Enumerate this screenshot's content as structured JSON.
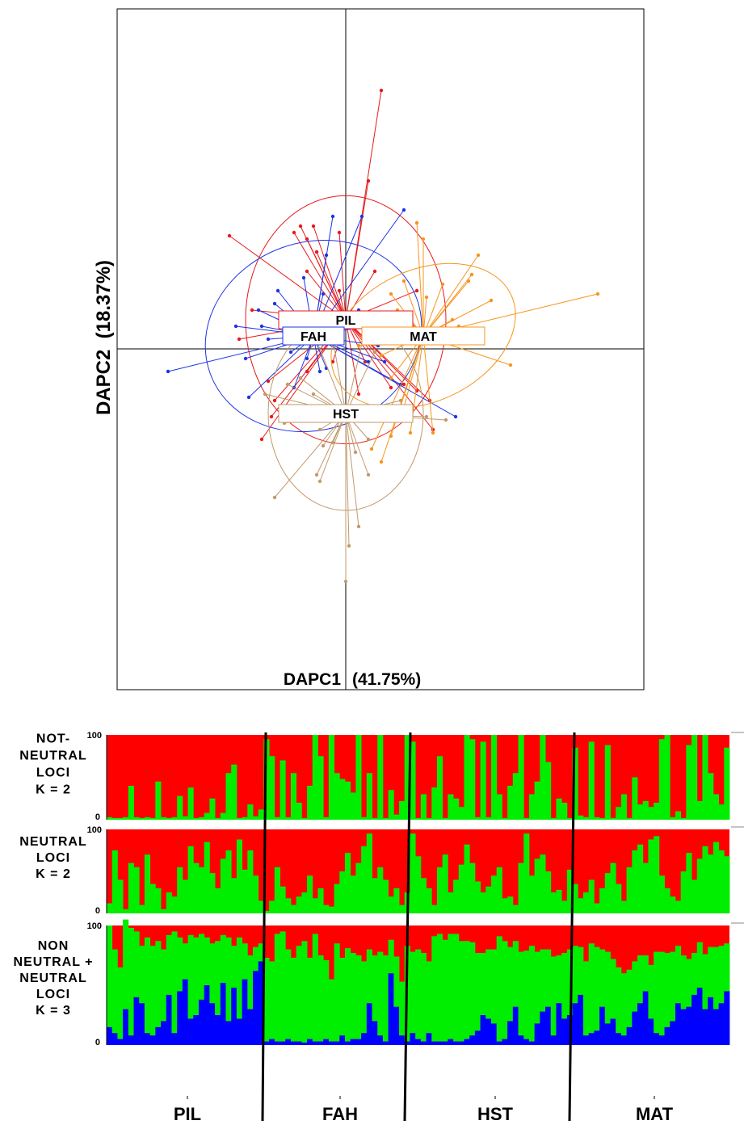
{
  "chart_data": [
    {
      "type": "scatter",
      "subtype": "DAPC star plot with 95% inertia ellipses",
      "xlabel": "DAPC1",
      "xlabel_pct": "(41.75%)",
      "ylabel": "DAPC2  (18.37%)",
      "axes_cross_at_origin": true,
      "grid": false,
      "groups": [
        {
          "name": "PIL",
          "color": "#e8191b",
          "centroid": [
            0.0,
            0.45
          ],
          "ellipse": {
            "rx": 1.55,
            "ry": 1.92,
            "angle": 0
          },
          "points": [
            [
              -1.8,
              1.75
            ],
            [
              0.35,
              2.6
            ],
            [
              0.55,
              4.0
            ],
            [
              -0.8,
              1.8
            ],
            [
              -0.6,
              1.7
            ],
            [
              -0.7,
              1.9
            ],
            [
              -0.5,
              1.9
            ],
            [
              -0.45,
              1.5
            ],
            [
              -0.1,
              1.8
            ],
            [
              0.45,
              1.2
            ],
            [
              1.1,
              0.9
            ],
            [
              0.8,
              0.3
            ],
            [
              -1.65,
              0.15
            ],
            [
              -1.45,
              0.6
            ],
            [
              -1.2,
              -0.5
            ],
            [
              -1.1,
              -0.8
            ],
            [
              -1.3,
              -1.4
            ],
            [
              -1.15,
              -1.05
            ],
            [
              -0.6,
              -0.35
            ],
            [
              -0.2,
              -0.2
            ],
            [
              0.3,
              -0.2
            ],
            [
              0.7,
              -0.6
            ],
            [
              0.9,
              -0.55
            ],
            [
              0.2,
              -0.7
            ],
            [
              1.1,
              -0.65
            ],
            [
              1.35,
              -1.25
            ],
            [
              1.3,
              -0.8
            ],
            [
              -0.5,
              0.55
            ],
            [
              -0.1,
              0.9
            ],
            [
              0.5,
              0.55
            ],
            [
              -0.6,
              1.2
            ]
          ]
        },
        {
          "name": "FAH",
          "color": "#1e33e6",
          "centroid": [
            -0.5,
            0.2
          ],
          "ellipse": {
            "rx": 1.7,
            "ry": 1.45,
            "angle": -20
          },
          "points": [
            [
              -1.7,
              0.35
            ],
            [
              -2.75,
              -0.35
            ],
            [
              -1.35,
              0.6
            ],
            [
              -0.65,
              1.1
            ],
            [
              -0.3,
              1.45
            ],
            [
              -0.2,
              2.05
            ],
            [
              0.25,
              2.05
            ],
            [
              0.9,
              2.15
            ],
            [
              -1.05,
              0.9
            ],
            [
              -1.1,
              0.7
            ],
            [
              -1.5,
              -0.75
            ],
            [
              -1.55,
              -0.15
            ],
            [
              -1.2,
              0.15
            ],
            [
              -0.85,
              -0.05
            ],
            [
              -0.6,
              -0.15
            ],
            [
              -0.3,
              -0.3
            ],
            [
              0.35,
              -0.2
            ],
            [
              -0.4,
              -0.35
            ],
            [
              0.5,
              0.05
            ],
            [
              0.6,
              -0.2
            ],
            [
              1.7,
              -1.05
            ],
            [
              0.85,
              -0.55
            ],
            [
              -0.8,
              -0.6
            ],
            [
              -0.35,
              0.85
            ],
            [
              -0.15,
              0.4
            ],
            [
              0.2,
              0.6
            ],
            [
              0.3,
              0.35
            ],
            [
              -1.3,
              0.35
            ]
          ]
        },
        {
          "name": "MAT",
          "color": "#f7941d",
          "centroid": [
            1.2,
            0.2
          ],
          "ellipse": {
            "rx": 1.5,
            "ry": 1.02,
            "angle": -25
          },
          "points": [
            [
              1.2,
              1.7
            ],
            [
              1.1,
              1.95
            ],
            [
              0.9,
              1.05
            ],
            [
              0.7,
              0.85
            ],
            [
              3.9,
              0.85
            ],
            [
              2.05,
              1.45
            ],
            [
              1.95,
              1.15
            ],
            [
              1.5,
              1.0
            ],
            [
              1.25,
              0.8
            ],
            [
              1.65,
              0.45
            ],
            [
              2.25,
              0.75
            ],
            [
              1.75,
              0.35
            ],
            [
              0.55,
              0.15
            ],
            [
              0.2,
              0.05
            ],
            [
              0.25,
              0.5
            ],
            [
              0.55,
              -0.1
            ],
            [
              0.8,
              0.6
            ],
            [
              1.05,
              0.35
            ],
            [
              1.9,
              1.05
            ],
            [
              2.55,
              -0.25
            ],
            [
              1.35,
              -1.3
            ],
            [
              1.0,
              -1.3
            ],
            [
              0.7,
              -1.35
            ],
            [
              0.55,
              -1.75
            ],
            [
              0.4,
              -1.55
            ],
            [
              0.7,
              -0.45
            ],
            [
              0.9,
              -0.9
            ]
          ]
        },
        {
          "name": "HST",
          "color": "#c19a6b",
          "centroid": [
            0.0,
            -1.0
          ],
          "ellipse": {
            "rx": 1.2,
            "ry": 1.5,
            "angle": 0
          },
          "points": [
            [
              -0.95,
              -1.15
            ],
            [
              -1.25,
              -0.7
            ],
            [
              -0.9,
              -0.55
            ],
            [
              -0.7,
              -0.45
            ],
            [
              -0.6,
              0.5
            ],
            [
              -0.5,
              -0.7
            ],
            [
              -0.4,
              -1.25
            ],
            [
              -0.35,
              -1.5
            ],
            [
              -0.2,
              -1.45
            ],
            [
              0.15,
              -1.6
            ],
            [
              0.35,
              -1.95
            ],
            [
              -0.45,
              -1.95
            ],
            [
              -0.4,
              -2.05
            ],
            [
              -1.1,
              -2.3
            ],
            [
              0.05,
              -3.05
            ],
            [
              0.2,
              -2.75
            ],
            [
              0.0,
              -3.6
            ],
            [
              0.35,
              -1.4
            ],
            [
              0.55,
              -0.95
            ],
            [
              0.65,
              -1.1
            ],
            [
              0.85,
              -0.8
            ],
            [
              1.25,
              -1.05
            ],
            [
              1.55,
              -1.1
            ],
            [
              0.3,
              0.3
            ],
            [
              -0.2,
              0.15
            ],
            [
              0.45,
              -0.05
            ]
          ]
        }
      ],
      "labels": [
        "PIL",
        "FAH",
        "MAT",
        "HST"
      ]
    },
    {
      "type": "bar",
      "subtype": "STRUCTURE stacked ancestry barplot",
      "ylim": [
        0,
        100
      ],
      "yticks": [
        "100",
        "0"
      ],
      "populations": [
        "PIL",
        "FAH",
        "HST",
        "MAT"
      ],
      "n_individuals": 115,
      "population_breaks_after": [
        29,
        55,
        85
      ],
      "cluster_colors": [
        "#00ee00",
        "#ff0000",
        "#0000ff"
      ],
      "panels": [
        {
          "label": [
            "NOT-",
            "NEUTRAL",
            "LOCI",
            "K  =  2"
          ],
          "K": 2,
          "green": [
            3,
            2,
            2,
            3,
            40,
            3,
            2,
            3,
            2,
            45,
            3,
            2,
            3,
            28,
            4,
            38,
            2,
            3,
            8,
            25,
            2,
            8,
            55,
            65,
            2,
            3,
            18,
            4,
            12,
            95,
            75,
            3,
            70,
            3,
            55,
            20,
            2,
            40,
            100,
            75,
            3,
            100,
            55,
            48,
            45,
            32,
            100,
            3,
            55,
            2,
            100,
            2,
            35,
            6,
            22,
            100,
            92,
            2,
            30,
            2,
            38,
            75,
            2,
            30,
            25,
            15,
            100,
            95,
            3,
            92,
            3,
            100,
            30,
            2,
            40,
            55,
            100,
            2,
            30,
            45,
            100,
            68,
            2,
            25,
            20,
            2,
            85,
            5,
            3,
            92,
            3,
            2,
            88,
            2,
            15,
            30,
            2,
            50,
            18,
            22,
            15,
            20,
            95,
            100,
            3,
            10,
            2,
            88,
            100,
            22,
            100,
            55,
            30,
            18,
            85
          ]
        },
        {
          "label": [
            "NEUTRAL",
            "LOCI",
            "K = 2"
          ],
          "K": 2,
          "green": [
            12,
            75,
            40,
            5,
            60,
            55,
            10,
            70,
            35,
            30,
            5,
            25,
            20,
            55,
            40,
            80,
            60,
            55,
            85,
            48,
            30,
            65,
            75,
            42,
            88,
            52,
            75,
            45,
            15,
            3,
            15,
            55,
            32,
            18,
            10,
            20,
            25,
            45,
            18,
            30,
            10,
            8,
            35,
            50,
            72,
            45,
            60,
            80,
            95,
            42,
            55,
            40,
            20,
            30,
            10,
            25,
            95,
            68,
            42,
            30,
            10,
            55,
            70,
            25,
            40,
            58,
            82,
            60,
            38,
            25,
            32,
            45,
            55,
            18,
            20,
            10,
            60,
            95,
            45,
            65,
            70,
            50,
            25,
            28,
            15,
            52,
            35,
            18,
            25,
            40,
            12,
            30,
            48,
            60,
            35,
            15,
            55,
            75,
            82,
            60,
            88,
            92,
            45,
            30,
            20,
            15,
            50,
            72,
            40,
            65,
            80,
            70,
            85,
            75,
            68
          ],
          "red_sliver_width_marker": false
        },
        {
          "label": [
            "NON",
            "NEUTRAL +",
            "NEUTRAL",
            "LOCI",
            "K = 3"
          ],
          "K": 3,
          "green": [
            85,
            70,
            60,
            75,
            90,
            55,
            48,
            80,
            75,
            72,
            60,
            50,
            85,
            45,
            30,
            70,
            65,
            55,
            40,
            50,
            62,
            40,
            70,
            35,
            68,
            30,
            45,
            20,
            15,
            70,
            65,
            90,
            92,
            75,
            70,
            80,
            85,
            68,
            90,
            72,
            66,
            52,
            82,
            65,
            78,
            72,
            70,
            60,
            45,
            55,
            70,
            72,
            28,
            42,
            45,
            80,
            68,
            75,
            74,
            60,
            88,
            90,
            85,
            88,
            90,
            84,
            82,
            78,
            65,
            52,
            58,
            62,
            88,
            82,
            62,
            55,
            70,
            74,
            80,
            60,
            52,
            48,
            66,
            40,
            55,
            55,
            48,
            40,
            62,
            75,
            70,
            48,
            60,
            50,
            55,
            52,
            48,
            42,
            40,
            30,
            45,
            68,
            70,
            62,
            58,
            48,
            45,
            40,
            35,
            38,
            46,
            42,
            52,
            48,
            40
          ],
          "blue": [
            15,
            10,
            5,
            30,
            8,
            40,
            35,
            10,
            8,
            15,
            20,
            42,
            10,
            45,
            55,
            22,
            25,
            38,
            50,
            35,
            25,
            52,
            20,
            48,
            22,
            55,
            30,
            62,
            70,
            3,
            5,
            3,
            3,
            5,
            3,
            3,
            2,
            5,
            3,
            3,
            5,
            3,
            3,
            8,
            3,
            5,
            5,
            10,
            35,
            20,
            8,
            3,
            60,
            32,
            8,
            3,
            10,
            5,
            3,
            10,
            3,
            3,
            3,
            5,
            3,
            3,
            5,
            8,
            12,
            25,
            22,
            18,
            3,
            5,
            20,
            32,
            8,
            5,
            3,
            18,
            28,
            32,
            8,
            35,
            22,
            25,
            35,
            42,
            8,
            10,
            12,
            32,
            18,
            22,
            10,
            8,
            15,
            28,
            35,
            45,
            22,
            10,
            8,
            15,
            20,
            35,
            30,
            32,
            42,
            48,
            30,
            40,
            30,
            35,
            45
          ]
        }
      ],
      "xticks": [
        "PIL",
        "FAH",
        "HST",
        "MAT"
      ]
    }
  ],
  "colors": {
    "red": "#ff0000",
    "green": "#00ee00",
    "blue": "#0000ff",
    "axis": "#000000"
  }
}
